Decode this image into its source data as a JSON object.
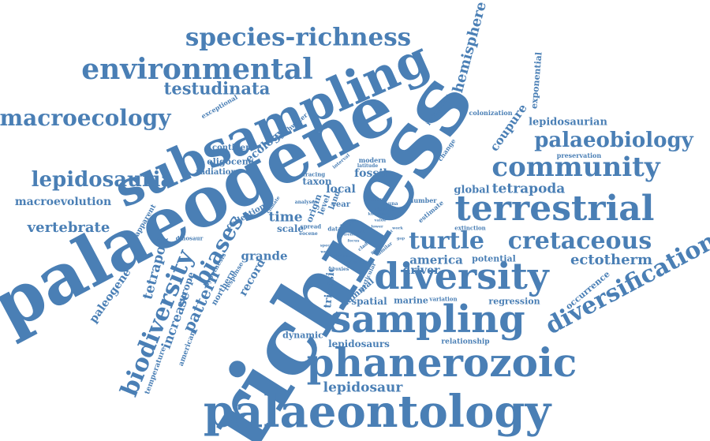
{
  "accent_color": "#4a7fb5",
  "background_color": "#ffffff",
  "words": [
    "richness",
    "palaeogene",
    "subsampling",
    "palaeontology",
    "phanerozoic",
    "sampling",
    "diversity",
    "terrestrial",
    "environmental",
    "species-richness",
    "community",
    "palaeobiology",
    "diversification",
    "cretaceous",
    "turtle",
    "macroecology",
    "lepidosauria",
    "biodiversity",
    "testudinata",
    "biases",
    "tetrapoda",
    "ectotherm",
    "lepidosaur",
    "lepidosaurs",
    "hemisphere",
    "vertebrate",
    "macroevolution",
    "pattern",
    "ecology",
    "time",
    "america",
    "grande",
    "tetrapod",
    "paleogene",
    "increase",
    "europe",
    "coupure",
    "record",
    "local",
    "fossil",
    "taxon",
    "global",
    "lepidosaurian",
    "exponential",
    "colonization",
    "preservation",
    "driver",
    "spatial",
    "marine",
    "regression",
    "triassic",
    "mammal",
    "dynamic",
    "relationship",
    "occurrence",
    "potential",
    "scale",
    "continent",
    "oligocene",
    "radiation",
    "exceptional",
    "freshwater",
    "interplay",
    "change",
    "collection",
    "apparent",
    "temperature",
    "american",
    "northern",
    "hypothesis",
    "response",
    "variation",
    "extinction",
    "estimate",
    "number",
    "origin",
    "level",
    "land",
    "year",
    "date",
    "data",
    "earliest",
    "studies",
    "proxies",
    "particular",
    "spread",
    "modern",
    "interval",
    "tracing",
    "analyses",
    "latitude",
    "climate",
    "dinosaur",
    "eocene",
    "similar",
    "fauna",
    "square",
    "kilometre",
    "million",
    "value",
    "effect",
    "period",
    "past",
    "trend",
    "clade",
    "focus",
    "lower",
    "role",
    "species",
    "well",
    "work",
    "gap"
  ]
}
